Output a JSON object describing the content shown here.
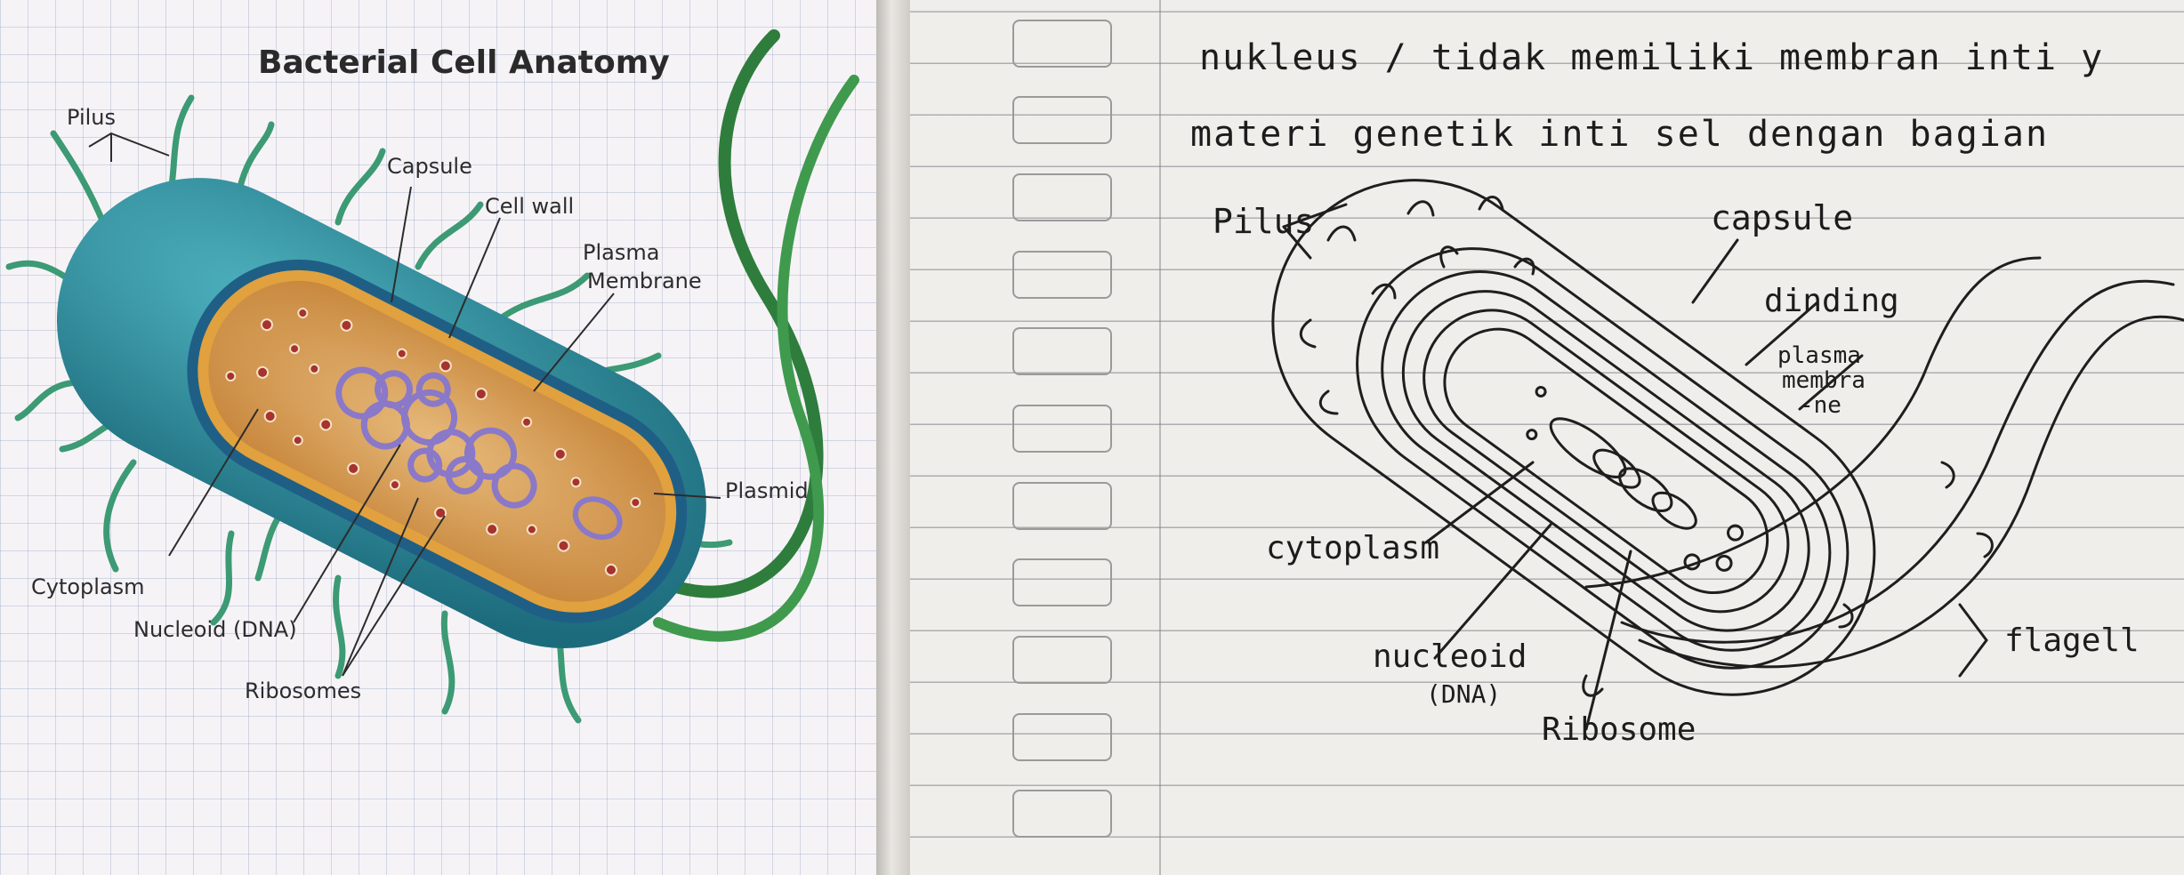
{
  "printed_diagram": {
    "title": "Bacterial Cell Anatomy",
    "labels": {
      "pilus": "Pilus",
      "capsule": "Capsule",
      "cell_wall": "Cell wall",
      "plasma_membrane_line1": "Plasma",
      "plasma_membrane_line2": "Membrane",
      "plasmid": "Plasmid",
      "cytoplasm": "Cytoplasm",
      "nucleoid": "Nucleoid (DNA)",
      "ribosomes": "Ribosomes"
    },
    "colors": {
      "capsule": "#2b8a99",
      "cell_wall": "#1f5f86",
      "cytoplasm": "#d9a85e",
      "dna": "#8a78c8",
      "flagellum": "#2e7d3c",
      "ribosome": "#a8322c"
    }
  },
  "notebook": {
    "text_line_1": "nukleus / tidak memiliki membran inti y",
    "text_line_2": "materi genetik inti sel dengan bagian",
    "labels": {
      "pilus": "Pilus",
      "capsule": "capsule",
      "dinding": "dinding",
      "plasma_line1": "plasma",
      "plasma_line2": "membra",
      "plasma_line3": "-ne",
      "cytoplasm": "cytoplasm",
      "nucleoid_line1": "nucleoid",
      "nucleoid_line2": "(DNA)",
      "ribosome": "Ribosome",
      "flagell": "flagell"
    }
  }
}
